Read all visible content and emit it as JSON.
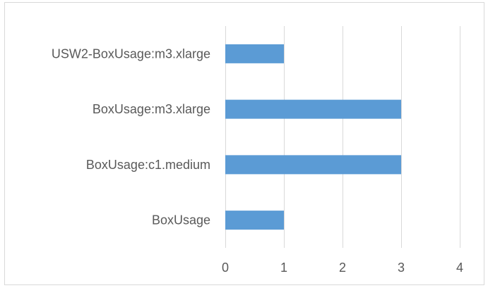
{
  "chart_data": {
    "type": "bar",
    "orientation": "horizontal",
    "title": "",
    "xlabel": "",
    "ylabel": "",
    "categories": [
      "USW2-BoxUsage:m3.xlarge",
      "BoxUsage:m3.xlarge",
      "BoxUsage:c1.medium",
      "BoxUsage"
    ],
    "values": [
      1,
      3,
      3,
      1
    ],
    "xlim": [
      0,
      4
    ],
    "x_ticks": [
      "0",
      "1",
      "2",
      "3",
      "4"
    ],
    "grid": "vertical",
    "legend": "none",
    "bar_color": "#5b9bd5",
    "grid_color": "#d9d9d9",
    "text_color": "#595959"
  }
}
